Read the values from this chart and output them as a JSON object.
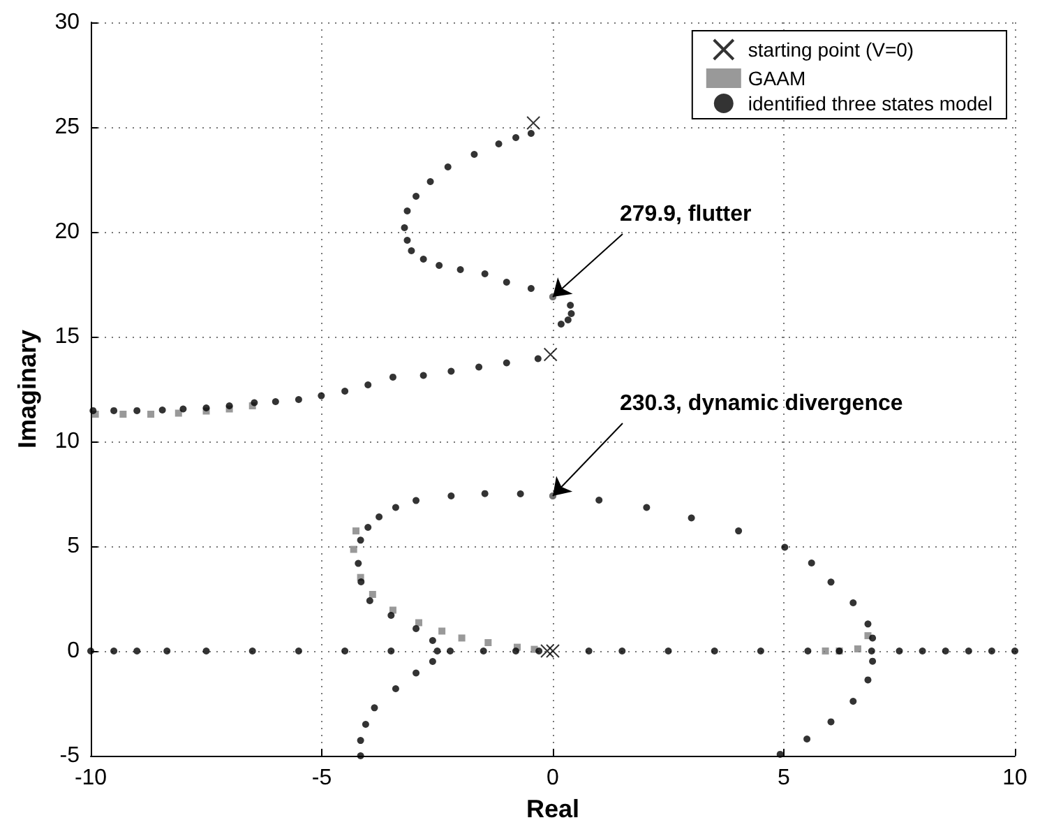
{
  "chart_data": {
    "type": "scatter",
    "xlabel": "Real",
    "ylabel": "Imaginary",
    "xlim": [
      -10,
      10
    ],
    "ylim": [
      -5,
      30
    ],
    "xticks": [
      -10,
      -5,
      0,
      5,
      10
    ],
    "yticks": [
      -5,
      0,
      5,
      10,
      15,
      20,
      25,
      30
    ],
    "grid": true,
    "legend": "top right",
    "annotations": [
      {
        "text": "279.9, flutter",
        "x": 0,
        "y": 16.9
      },
      {
        "text": "230.3, dynamic divergence",
        "x": 0,
        "y": 7.4
      }
    ],
    "series": [
      {
        "name": "starting point (V=0)",
        "color": "#000000",
        "marker": "cross",
        "x": [
          -0.42,
          -0.05,
          -0.12,
          0
        ],
        "values": [
          25.2,
          14.15,
          0,
          0
        ]
      },
      {
        "name": "GAAM",
        "color": "#808080",
        "marker": "square",
        "x": [
          -9.9,
          -9.3,
          -8.7,
          -8.1,
          -7.5,
          -7,
          -6.5,
          -4.26,
          -4.31,
          -4.16,
          -3.9,
          -3.46,
          -2.9,
          -2.4,
          -1.97,
          -1.4,
          -0.77,
          -0.4,
          6.82,
          6.6,
          6.2,
          5.9
        ],
        "values": [
          11.3,
          11.3,
          11.3,
          11.35,
          11.45,
          11.55,
          11.7,
          5.73,
          4.85,
          3.51,
          2.7,
          1.95,
          1.35,
          0.95,
          0.62,
          0.4,
          0.18,
          0.08,
          0.73,
          0.1,
          0,
          0
        ]
      },
      {
        "name": "identified three states model",
        "color": "#000000",
        "marker": "circle",
        "x": [
          -0.47,
          -0.8,
          -1.17,
          -1.7,
          -2.27,
          -2.65,
          -2.96,
          -3.15,
          -3.21,
          -3.15,
          -3.06,
          -2.8,
          -2.46,
          -2.0,
          -1.47,
          -1.0,
          -0.47,
          0,
          0.38,
          0.4,
          0.33,
          0.18,
          -0.32,
          -1,
          -1.6,
          -2.2,
          -2.8,
          -3.46,
          -4.0,
          -4.5,
          -5.01,
          -5.5,
          -6.0,
          -6.46,
          -7.0,
          -7.5,
          -8.0,
          -8.45,
          -9.0,
          -9.5,
          -9.95,
          -2.22,
          -2.6,
          -2.96,
          -3.5,
          -3.96,
          -4.15,
          -4.21,
          -4.16,
          -4.0,
          -3.76,
          -3.4,
          -2.96,
          -2.2,
          -1.47,
          -0.7,
          0,
          1.0,
          2.03,
          3.0,
          4.02,
          5.02,
          5.6,
          6.02,
          6.5,
          6.82,
          6.92,
          6.92,
          6.82,
          6.5,
          6.02,
          5.5,
          4.92,
          -2.6,
          -2.96,
          -3.4,
          -3.86,
          -4.05,
          -4.16,
          -4.16,
          -10,
          -9.5,
          -9,
          -8.35,
          -7.5,
          -6.5,
          -5.5,
          -4.5,
          -3.5,
          -2.5,
          -1.5,
          -0.8,
          -0.3,
          0.78,
          1.5,
          2.5,
          3.5,
          4.5,
          5.52,
          6.2,
          6.9,
          7.5,
          8,
          8.5,
          9,
          9.5,
          10
        ],
        "values": [
          24.7,
          24.5,
          24.2,
          23.7,
          23.1,
          22.4,
          21.7,
          21,
          20.2,
          19.6,
          19.1,
          18.7,
          18.4,
          18.2,
          18.0,
          17.6,
          17.3,
          16.9,
          16.5,
          16.1,
          15.8,
          15.6,
          13.95,
          13.75,
          13.55,
          13.35,
          13.15,
          13.07,
          12.7,
          12.4,
          12.18,
          12.0,
          11.9,
          11.85,
          11.7,
          11.6,
          11.55,
          11.5,
          11.47,
          11.47,
          11.47,
          0,
          0.5,
          1.07,
          1.7,
          2.4,
          3.3,
          4.18,
          5.29,
          5.9,
          6.4,
          6.85,
          7.18,
          7.4,
          7.51,
          7.5,
          7.4,
          7.2,
          6.85,
          6.35,
          5.73,
          4.95,
          4.2,
          3.29,
          2.3,
          1.29,
          0.62,
          -0.49,
          -1.38,
          -2.4,
          -3.38,
          -4.2,
          -4.93,
          -0.5,
          -1.05,
          -1.8,
          -2.71,
          -3.5,
          -4.27,
          -5,
          0,
          0,
          0,
          0,
          0,
          0,
          0,
          0,
          0,
          0,
          0,
          0,
          0,
          0,
          0,
          0,
          0,
          0,
          0,
          0,
          0,
          0,
          0,
          0,
          0,
          0,
          0
        ]
      },
      {
        "color": "#808080",
        "marker": "circle",
        "x": [
          0,
          0
        ],
        "values": [
          16.9,
          7.4
        ]
      }
    ]
  }
}
